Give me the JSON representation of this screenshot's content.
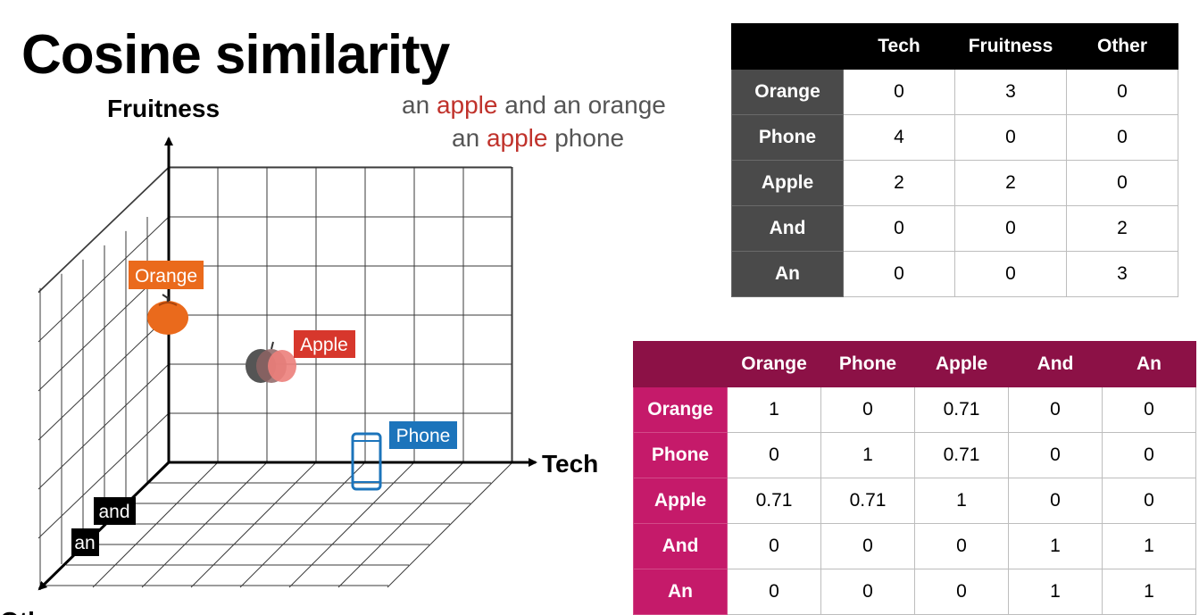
{
  "title": "Cosine similarity",
  "sentences": {
    "s1_pre": "an ",
    "s1_hl": "apple",
    "s1_post": " and an orange",
    "s2_pre": "an ",
    "s2_hl": "apple",
    "s2_post": " phone"
  },
  "plot": {
    "y_axis_label": "Fruitness",
    "x_axis_label": "Tech",
    "z_axis_label": "Other",
    "points": {
      "orange": "Orange",
      "apple": "Apple",
      "phone": "Phone",
      "and": "and",
      "an": "an"
    }
  },
  "colors": {
    "orange": "#ea6a1c",
    "apple": "#d7372c",
    "phone": "#1c74bb",
    "highlight": "#c0322b",
    "table1_header": "#000000",
    "table1_rowhead": "#4a4a4a",
    "table2_header": "#8c1146",
    "table2_rowhead": "#c51a6a"
  },
  "icons": [
    "orange-fruit-icon",
    "apple-fruit-icon",
    "phone-icon"
  ],
  "vector_table": {
    "columns": [
      "Tech",
      "Fruitness",
      "Other"
    ],
    "rows": [
      {
        "label": "Orange",
        "values": [
          "0",
          "3",
          "0"
        ]
      },
      {
        "label": "Phone",
        "values": [
          "4",
          "0",
          "0"
        ]
      },
      {
        "label": "Apple",
        "values": [
          "2",
          "2",
          "0"
        ]
      },
      {
        "label": "And",
        "values": [
          "0",
          "0",
          "2"
        ]
      },
      {
        "label": "An",
        "values": [
          "0",
          "0",
          "3"
        ]
      }
    ]
  },
  "similarity_table": {
    "columns": [
      "Orange",
      "Phone",
      "Apple",
      "And",
      "An"
    ],
    "rows": [
      {
        "label": "Orange",
        "values": [
          "1",
          "0",
          "0.71",
          "0",
          "0"
        ]
      },
      {
        "label": "Phone",
        "values": [
          "0",
          "1",
          "0.71",
          "0",
          "0"
        ]
      },
      {
        "label": "Apple",
        "values": [
          "0.71",
          "0.71",
          "1",
          "0",
          "0"
        ]
      },
      {
        "label": "And",
        "values": [
          "0",
          "0",
          "0",
          "1",
          "1"
        ]
      },
      {
        "label": "An",
        "values": [
          "0",
          "0",
          "0",
          "1",
          "1"
        ]
      }
    ]
  }
}
